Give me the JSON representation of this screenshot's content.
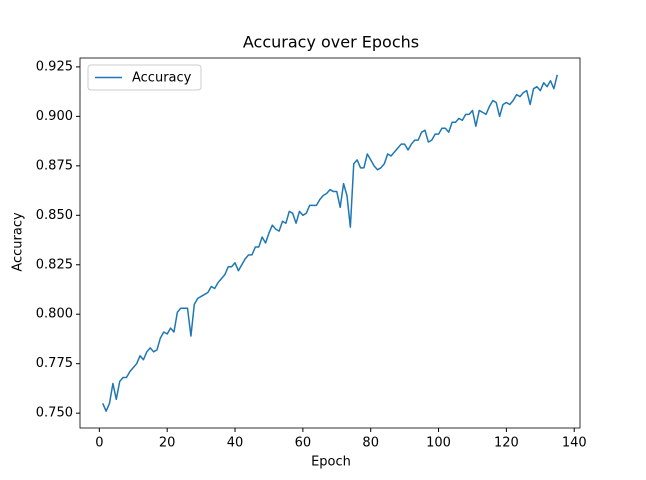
{
  "chart_data": {
    "type": "line",
    "title": "Accuracy over Epochs",
    "x_label": "Epoch",
    "y_label": "Accuracy",
    "legend": "upper left",
    "x": [
      1,
      2,
      3,
      4,
      5,
      6,
      7,
      8,
      9,
      10,
      11,
      12,
      13,
      14,
      15,
      16,
      17,
      18,
      19,
      20,
      21,
      22,
      23,
      24,
      25,
      26,
      27,
      28,
      29,
      30,
      31,
      32,
      33,
      34,
      35,
      36,
      37,
      38,
      39,
      40,
      41,
      42,
      43,
      44,
      45,
      46,
      47,
      48,
      49,
      50,
      51,
      52,
      53,
      54,
      55,
      56,
      57,
      58,
      59,
      60,
      61,
      62,
      63,
      64,
      65,
      66,
      67,
      68,
      69,
      70,
      71,
      72,
      73,
      74,
      75,
      76,
      77,
      78,
      79,
      80,
      81,
      82,
      83,
      84,
      85,
      86,
      87,
      88,
      89,
      90,
      91,
      92,
      93,
      94,
      95,
      96,
      97,
      98,
      99,
      100,
      101,
      102,
      103,
      104,
      105,
      106,
      107,
      108,
      109,
      110,
      111,
      112,
      113,
      114,
      115,
      116,
      117,
      118,
      119,
      120,
      121,
      122,
      123,
      124,
      125,
      126,
      127,
      128,
      129,
      130,
      131,
      132,
      133,
      134,
      135
    ],
    "series": [
      {
        "name": "Accuracy",
        "color": "#1f77b4",
        "values": [
          0.755,
          0.751,
          0.755,
          0.765,
          0.757,
          0.766,
          0.768,
          0.768,
          0.771,
          0.773,
          0.775,
          0.779,
          0.777,
          0.781,
          0.783,
          0.781,
          0.782,
          0.788,
          0.791,
          0.79,
          0.793,
          0.791,
          0.801,
          0.803,
          0.803,
          0.803,
          0.789,
          0.805,
          0.808,
          0.809,
          0.81,
          0.811,
          0.814,
          0.813,
          0.816,
          0.818,
          0.82,
          0.824,
          0.824,
          0.826,
          0.822,
          0.825,
          0.828,
          0.83,
          0.83,
          0.834,
          0.834,
          0.839,
          0.836,
          0.841,
          0.845,
          0.843,
          0.842,
          0.847,
          0.846,
          0.852,
          0.851,
          0.846,
          0.852,
          0.85,
          0.851,
          0.855,
          0.855,
          0.855,
          0.858,
          0.86,
          0.861,
          0.863,
          0.862,
          0.862,
          0.854,
          0.866,
          0.86,
          0.844,
          0.876,
          0.878,
          0.874,
          0.874,
          0.881,
          0.878,
          0.875,
          0.873,
          0.874,
          0.876,
          0.881,
          0.88,
          0.882,
          0.884,
          0.886,
          0.886,
          0.883,
          0.886,
          0.888,
          0.888,
          0.892,
          0.893,
          0.887,
          0.888,
          0.891,
          0.891,
          0.894,
          0.894,
          0.892,
          0.897,
          0.897,
          0.899,
          0.898,
          0.901,
          0.901,
          0.903,
          0.895,
          0.903,
          0.902,
          0.901,
          0.905,
          0.908,
          0.907,
          0.9,
          0.906,
          0.907,
          0.906,
          0.908,
          0.911,
          0.91,
          0.912,
          0.913,
          0.906,
          0.914,
          0.915,
          0.913,
          0.917,
          0.915,
          0.918,
          0.914,
          0.921
        ]
      }
    ],
    "xlim": [
      -5.7,
      141.7
    ],
    "xticks": [
      0,
      20,
      40,
      60,
      80,
      100,
      120,
      140
    ],
    "ylim": [
      0.7425,
      0.9295
    ],
    "yticks": [
      {
        "value": 0.75,
        "label": "0.750"
      },
      0.775,
      {
        "value": 0.8,
        "label": "0.800"
      },
      0.825,
      {
        "value": 0.85,
        "label": "0.850"
      },
      0.875,
      {
        "value": 0.9,
        "label": "0.900"
      },
      0.925
    ]
  }
}
